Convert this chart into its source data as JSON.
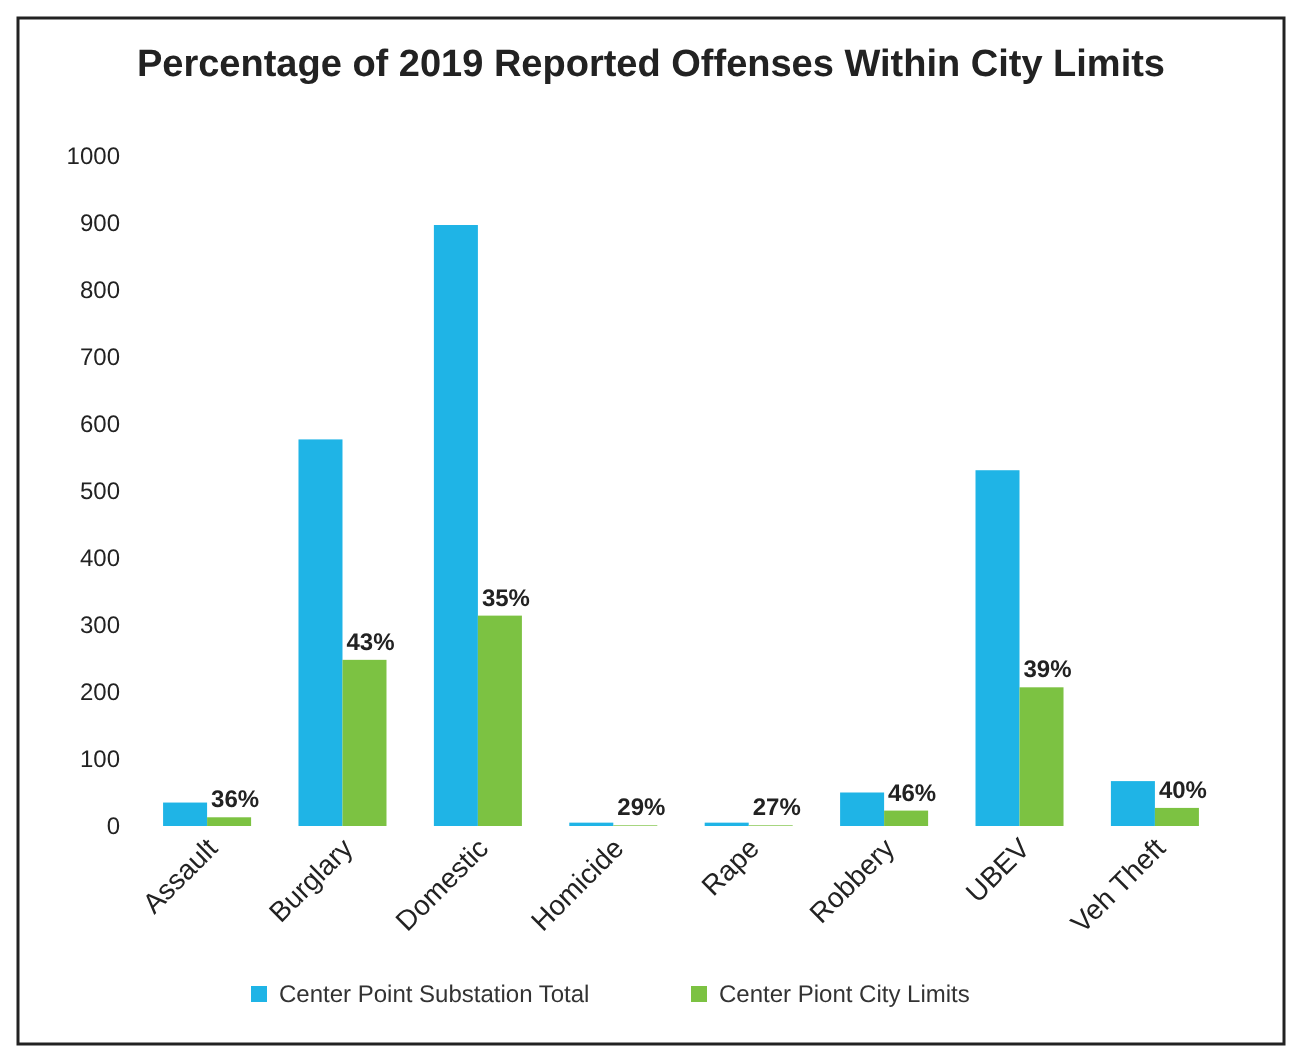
{
  "chart_data": {
    "type": "bar",
    "title": "Percentage of 2019 Reported Offenses Within City Limits",
    "categories": [
      "Assault",
      "Burglary",
      "Domestic",
      "Homicide",
      "Rape",
      "Robbery",
      "UBEV",
      "Veh Theft"
    ],
    "series": [
      {
        "name": "Center Point Substation Total",
        "color": "#1fb4e6",
        "values": [
          35,
          577,
          897,
          5,
          5,
          50,
          531,
          67
        ]
      },
      {
        "name": "Center Piont City Limits",
        "color": "#7cc242",
        "values": [
          13,
          248,
          314,
          1,
          1,
          23,
          207,
          27
        ]
      }
    ],
    "annotations": [
      {
        "text": "36%",
        "x": "Assault",
        "y": 13
      },
      {
        "text": "43%",
        "x": "Burglary",
        "y": 248
      },
      {
        "text": "35%",
        "x": "Domestic",
        "y": 314
      },
      {
        "text": "29%",
        "x": "Homicide",
        "y": 1
      },
      {
        "text": "27%",
        "x": "Rape",
        "y": 1
      },
      {
        "text": "46%",
        "x": "Robbery",
        "y": 23
      },
      {
        "text": "39%",
        "x": "UBEV",
        "y": 207
      },
      {
        "text": "40%",
        "x": "Veh Theft",
        "y": 27
      }
    ],
    "ylim": [
      0,
      1000
    ],
    "yticks": [
      0,
      100,
      200,
      300,
      400,
      500,
      600,
      700,
      800,
      900,
      1000
    ],
    "grid": false,
    "legend": "bottom"
  }
}
